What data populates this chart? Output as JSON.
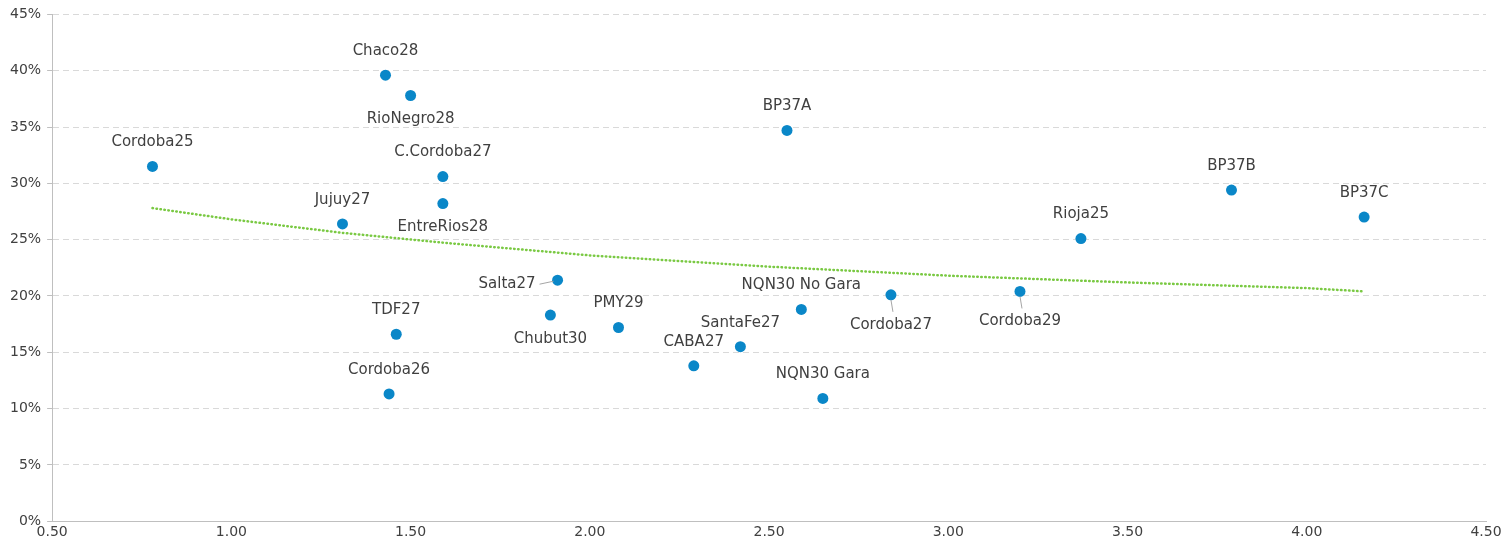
{
  "chart_data": {
    "type": "scatter",
    "xlim": [
      0.5,
      4.5
    ],
    "xticks": [
      {
        "value": 0.5,
        "label": "0.50"
      },
      {
        "value": 1,
        "label": "1.00"
      },
      {
        "value": 1.5,
        "label": "1.50"
      },
      {
        "value": 2,
        "label": "2.00"
      },
      {
        "value": 2.5,
        "label": "2.50"
      },
      {
        "value": 3,
        "label": "3.00"
      },
      {
        "value": 3.5,
        "label": "3.50"
      },
      {
        "value": 4,
        "label": "4.00"
      },
      {
        "value": 4.5,
        "label": "4.50"
      }
    ],
    "ylim": [
      0,
      45
    ],
    "yticks": [
      {
        "value": 0,
        "label": "0%"
      },
      {
        "value": 5,
        "label": "5%"
      },
      {
        "value": 10,
        "label": "10%"
      },
      {
        "value": 15,
        "label": "15%"
      },
      {
        "value": 20,
        "label": "20%"
      },
      {
        "value": 25,
        "label": "25%"
      },
      {
        "value": 30,
        "label": "30%"
      },
      {
        "value": 35,
        "label": "35%"
      },
      {
        "value": 40,
        "label": "40%"
      },
      {
        "value": 45,
        "label": "45%"
      }
    ],
    "grid": "y",
    "legend": false,
    "series": [
      {
        "type": "scatter",
        "color": "#0a87c8",
        "marker": "circle",
        "x": [
          0.78,
          1.43,
          1.5,
          1.59,
          1.59,
          1.31,
          1.91,
          1.89,
          2.08,
          1.46,
          1.44,
          2.29,
          2.42,
          2.55,
          2.59,
          2.65,
          2.84,
          3.2,
          3.37,
          3.79,
          4.16
        ],
        "values": [
          31.5,
          39.6,
          37.8,
          30.6,
          28.2,
          26.4,
          21.4,
          18.3,
          17.2,
          16.6,
          11.3,
          13.8,
          15.5,
          34.7,
          18.8,
          10.9,
          20.1,
          20.4,
          25.1,
          29.4,
          27.0
        ]
      },
      {
        "type": "line",
        "color": "#7ac943",
        "marker": "none",
        "line_style": "dotted",
        "x": [
          0.78,
          1.0,
          1.31,
          1.6,
          2.0,
          2.5,
          3.0,
          3.5,
          4.0,
          4.16
        ],
        "values": [
          27.8,
          26.8,
          25.6,
          24.7,
          23.6,
          22.6,
          21.8,
          21.2,
          20.7,
          20.4
        ]
      }
    ],
    "annotations": [
      {
        "text": "Cordoba25",
        "x": 0.78,
        "y": 31.5
      },
      {
        "text": "Chaco28",
        "x": 1.43,
        "y": 39.6
      },
      {
        "text": "RioNegro28",
        "x": 1.5,
        "y": 37.8
      },
      {
        "text": "C.Cordoba27",
        "x": 1.59,
        "y": 30.6
      },
      {
        "text": "EntreRios28",
        "x": 1.59,
        "y": 28.2
      },
      {
        "text": "Jujuy27",
        "x": 1.31,
        "y": 26.4
      },
      {
        "text": "Salta27",
        "x": 1.91,
        "y": 21.4
      },
      {
        "text": "Chubut30",
        "x": 1.89,
        "y": 18.3
      },
      {
        "text": "PMY29",
        "x": 2.08,
        "y": 17.2
      },
      {
        "text": "TDF27",
        "x": 1.46,
        "y": 16.6
      },
      {
        "text": "Cordoba26",
        "x": 1.44,
        "y": 11.3
      },
      {
        "text": "CABA27",
        "x": 2.29,
        "y": 13.8
      },
      {
        "text": "SantaFe27",
        "x": 2.42,
        "y": 15.5
      },
      {
        "text": "BP37A",
        "x": 2.55,
        "y": 34.7
      },
      {
        "text": "NQN30 No Gara",
        "x": 2.59,
        "y": 18.8
      },
      {
        "text": "NQN30 Gara",
        "x": 2.65,
        "y": 10.9
      },
      {
        "text": "Cordoba27",
        "x": 2.84,
        "y": 20.1
      },
      {
        "text": "Cordoba29",
        "x": 3.2,
        "y": 20.4
      },
      {
        "text": "Rioja25",
        "x": 3.37,
        "y": 25.1
      },
      {
        "text": "BP37B",
        "x": 3.79,
        "y": 29.4
      },
      {
        "text": "BP37C",
        "x": 4.16,
        "y": 27.0
      }
    ]
  }
}
